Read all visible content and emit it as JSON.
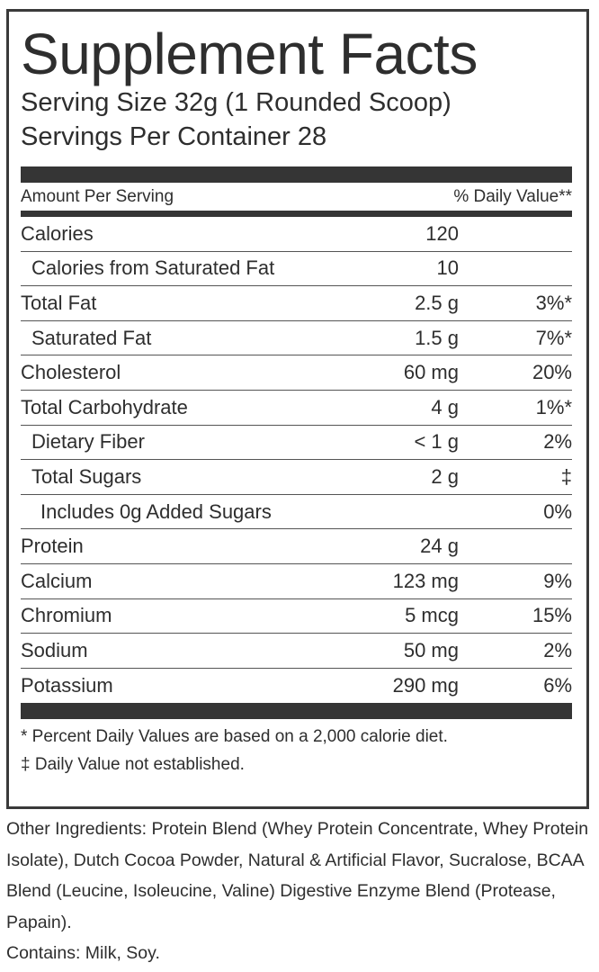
{
  "title": "Supplement Facts",
  "serving_size": "Serving Size 32g (1 Rounded Scoop)",
  "servings_per_container": "Servings Per Container  28",
  "header": {
    "amount": "Amount Per Serving",
    "dv": "% Daily Value**"
  },
  "rows": [
    {
      "name": "Calories",
      "amount": "120",
      "dv": ""
    },
    {
      "name": "Calories from Saturated Fat",
      "amount": "10",
      "dv": ""
    },
    {
      "name": "Total Fat",
      "amount": "2.5 g",
      "dv": "3%*"
    },
    {
      "name": "Saturated Fat",
      "amount": "1.5 g",
      "dv": "7%*"
    },
    {
      "name": "Cholesterol",
      "amount": "60 mg",
      "dv": "20%"
    },
    {
      "name": "Total Carbohydrate",
      "amount": "4 g",
      "dv": "1%*"
    },
    {
      "name": "Dietary Fiber",
      "amount": "< 1 g",
      "dv": "2%"
    },
    {
      "name": "Total Sugars",
      "amount": "2 g",
      "dv": "‡"
    },
    {
      "name": "Includes 0g Added Sugars",
      "amount": "",
      "dv": "0%"
    },
    {
      "name": "Protein",
      "amount": "24 g",
      "dv": ""
    },
    {
      "name": "Calcium",
      "amount": "123 mg",
      "dv": "9%"
    },
    {
      "name": "Chromium",
      "amount": "5 mcg",
      "dv": "15%"
    },
    {
      "name": "Sodium",
      "amount": "50 mg",
      "dv": "2%"
    },
    {
      "name": "Potassium",
      "amount": "290 mg",
      "dv": "6%"
    }
  ],
  "footnotes": [
    "* Percent Daily Values are based on a 2,000 calorie diet.",
    "‡ Daily Value not established."
  ],
  "other_ingredients": "Other Ingredients: Protein Blend (Whey Protein Concentrate, Whey Protein Isolate), Dutch Cocoa Powder, Natural & Artificial Flavor, Sucralose, BCAA Blend (Leucine, Isoleucine, Valine) Digestive Enzyme Blend (Protease, Papain).",
  "contains": "Contains: Milk, Soy."
}
